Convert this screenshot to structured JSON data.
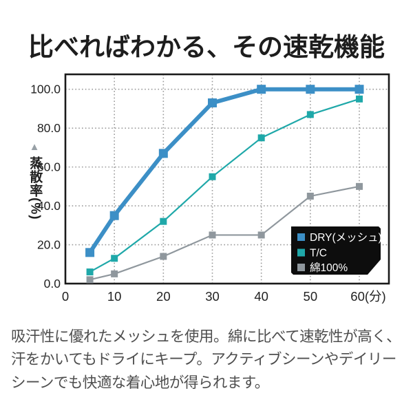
{
  "title": "比べればわかる、その速乾機能",
  "ylabel_arrow": "▲",
  "chart_data": {
    "type": "line",
    "x": [
      5,
      10,
      20,
      30,
      40,
      50,
      60
    ],
    "x_tick_values": [
      0,
      10,
      20,
      30,
      40,
      50,
      60
    ],
    "x_tick_labels": [
      "0",
      "10",
      "20",
      "30",
      "40",
      "50",
      "60(分)"
    ],
    "x_unit": "分",
    "y_tick_labels": [
      "0.0",
      "20.0",
      "40.0",
      "60.0",
      "80.0",
      "100.0"
    ],
    "ylabel": "蒸散率(%)",
    "ylim": [
      0,
      107
    ],
    "grid": "dotted",
    "legend_position": "inside-bottom-right",
    "series": [
      {
        "name": "DRY(メッシュ)",
        "color": "#3c8fc6",
        "line_width": 6,
        "marker_size": 13,
        "values": [
          16,
          35,
          67,
          93,
          100,
          100,
          100
        ]
      },
      {
        "name": "T/C",
        "color": "#1fa8a9",
        "line_width": 2.2,
        "marker_size": 10,
        "values": [
          6,
          13,
          32,
          55,
          75,
          87,
          95
        ]
      },
      {
        "name": "綿100%",
        "color": "#8f979d",
        "line_width": 2.2,
        "marker_size": 10,
        "values": [
          2,
          5,
          14,
          25,
          25,
          45,
          50
        ]
      }
    ]
  },
  "colors": {
    "title": "#1d1d1d",
    "axis": "#1a1a1a",
    "grid": "#999999",
    "tick_text": "#222222",
    "legend_bg": "#0d0d0d",
    "legend_text": "#ffffff",
    "body_text": "#4e4e4e",
    "ylabel_arrow": "#98a0a6"
  },
  "description": "吸汗性に優れたメッシュを使用。綿に比べて速乾性が高く、汗をかいてもドライにキープ。アクティブシーンやデイリーシーンでも快適な着心地が得られます。"
}
